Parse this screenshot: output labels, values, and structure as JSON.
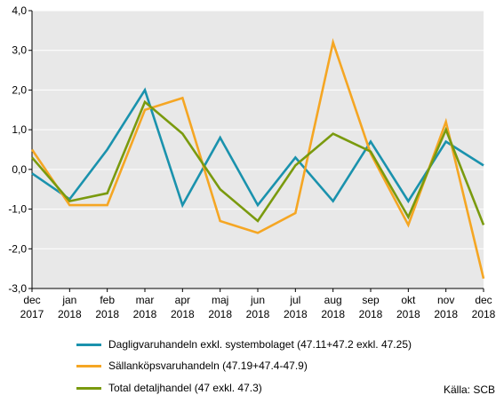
{
  "chart_data": {
    "type": "line",
    "x": [
      "dec 2017",
      "jan 2018",
      "feb 2018",
      "mar 2018",
      "apr 2018",
      "maj 2018",
      "jun 2018",
      "jul 2018",
      "aug 2018",
      "sep 2018",
      "okt 2018",
      "nov 2018",
      "dec 2018"
    ],
    "x_ticks": [
      {
        "line1": "dec",
        "line2": "2017"
      },
      {
        "line1": "jan",
        "line2": "2018"
      },
      {
        "line1": "feb",
        "line2": "2018"
      },
      {
        "line1": "mar",
        "line2": "2018"
      },
      {
        "line1": "apr",
        "line2": "2018"
      },
      {
        "line1": "maj",
        "line2": "2018"
      },
      {
        "line1": "jun",
        "line2": "2018"
      },
      {
        "line1": "jul",
        "line2": "2018"
      },
      {
        "line1": "aug",
        "line2": "2018"
      },
      {
        "line1": "sep",
        "line2": "2018"
      },
      {
        "line1": "okt",
        "line2": "2018"
      },
      {
        "line1": "nov",
        "line2": "2018"
      },
      {
        "line1": "dec",
        "line2": "2018"
      }
    ],
    "y_ticks": [
      "4,0",
      "3,0",
      "2,0",
      "1,0",
      "0,0",
      "-1,0",
      "-2,0",
      "-3,0"
    ],
    "y_tick_values": [
      4,
      3,
      2,
      1,
      0,
      -1,
      -2,
      -3
    ],
    "ylim": [
      -3,
      4
    ],
    "grid": "horizontal",
    "plot_background": "#e8e8e8",
    "legend_position": "bottom",
    "series": [
      {
        "name": "Dagligvaruhandeln exkl. systembolaget (47.11+47.2 exkl. 47.25)",
        "color": "#1a92ad",
        "values": [
          -0.1,
          -0.75,
          0.5,
          2.0,
          -0.9,
          0.8,
          -0.9,
          0.3,
          -0.8,
          0.7,
          -0.8,
          0.7,
          0.1
        ]
      },
      {
        "name": "Sällanköpsvaruhandeln (47.19+47.4-47.9)",
        "color": "#f5a623",
        "values": [
          0.5,
          -0.9,
          -0.9,
          1.5,
          1.8,
          -1.3,
          -1.6,
          -1.1,
          3.2,
          0.4,
          -1.4,
          1.2,
          -2.75
        ]
      },
      {
        "name": "Total detaljhandel (47 exkl. 47.3)",
        "color": "#7a9a0e",
        "values": [
          0.3,
          -0.8,
          -0.6,
          1.7,
          0.9,
          -0.5,
          -1.3,
          0.1,
          0.9,
          0.45,
          -1.2,
          1.0,
          -1.4
        ]
      }
    ]
  },
  "source_label": "Källa: SCB"
}
